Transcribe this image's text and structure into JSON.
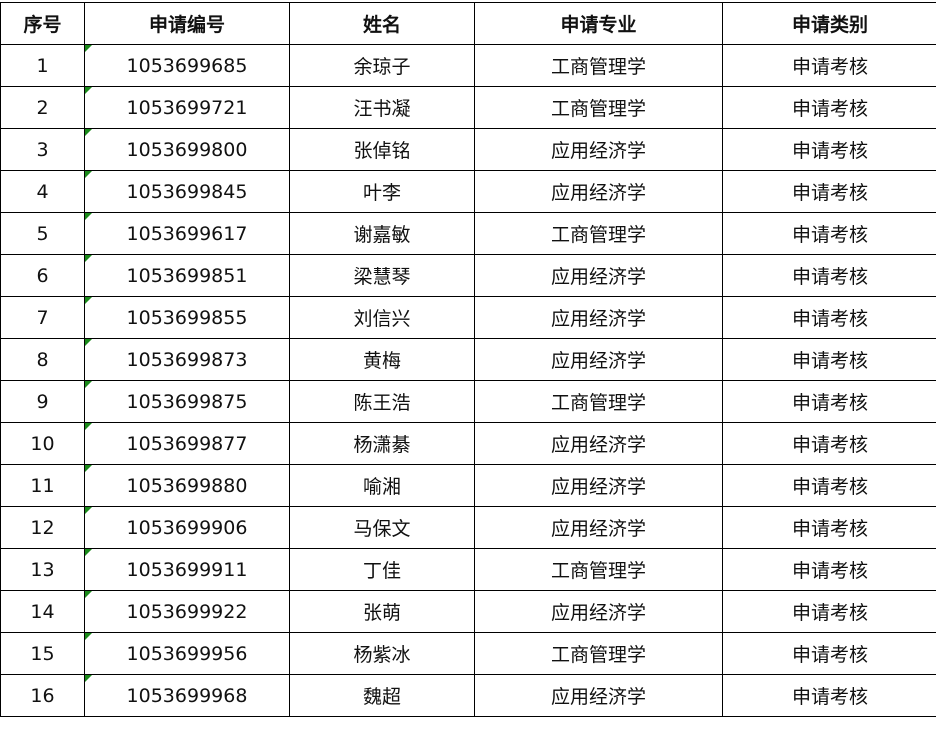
{
  "headers": [
    "序号",
    "申请编号",
    "姓名",
    "申请专业",
    "申请类别"
  ],
  "rows": [
    [
      "1",
      "1053699685",
      "余琼子",
      "工商管理学",
      "申请考核"
    ],
    [
      "2",
      "1053699721",
      "汪书凝",
      "工商管理学",
      "申请考核"
    ],
    [
      "3",
      "1053699800",
      "张倬铭",
      "应用经济学",
      "申请考核"
    ],
    [
      "4",
      "1053699845",
      "叶李",
      "应用经济学",
      "申请考核"
    ],
    [
      "5",
      "1053699617",
      "谢嘉敏",
      "工商管理学",
      "申请考核"
    ],
    [
      "6",
      "1053699851",
      "梁慧琴",
      "应用经济学",
      "申请考核"
    ],
    [
      "7",
      "1053699855",
      "刘信兴",
      "应用经济学",
      "申请考核"
    ],
    [
      "8",
      "1053699873",
      "黄梅",
      "应用经济学",
      "申请考核"
    ],
    [
      "9",
      "1053699875",
      "陈王浩",
      "工商管理学",
      "申请考核"
    ],
    [
      "10",
      "1053699877",
      "杨潇綦",
      "应用经济学",
      "申请考核"
    ],
    [
      "11",
      "1053699880",
      "喻湘",
      "应用经济学",
      "申请考核"
    ],
    [
      "12",
      "1053699906",
      "马保文",
      "应用经济学",
      "申请考核"
    ],
    [
      "13",
      "1053699911",
      "丁佳",
      "工商管理学",
      "申请考核"
    ],
    [
      "14",
      "1053699922",
      "张萌",
      "应用经济学",
      "申请考核"
    ],
    [
      "15",
      "1053699956",
      "杨紫冰",
      "工商管理学",
      "申请考核"
    ],
    [
      "16",
      "1053699968",
      "魏超",
      "应用经济学",
      "申请考核"
    ]
  ],
  "colors": {
    "error_indicator": "#1a8a1a",
    "border": "#000000"
  }
}
